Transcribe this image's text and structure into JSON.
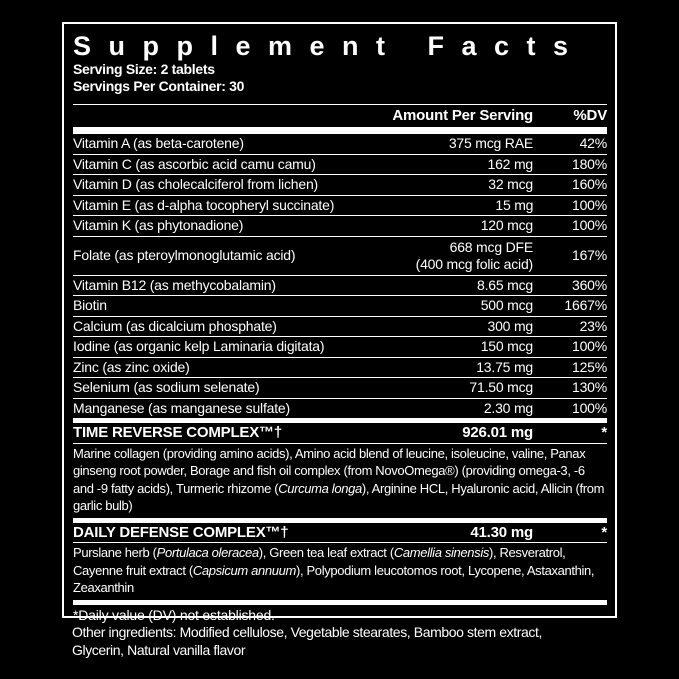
{
  "title": "Supplement Facts",
  "serving_size": "Serving Size: 2 tablets",
  "servings_per_container": "Servings Per Container: 30",
  "columns": {
    "amount": "Amount Per Serving",
    "dv": "%DV"
  },
  "rows": [
    {
      "name": "Vitamin A (as beta-carotene)",
      "amount": "375 mcg RAE",
      "dv": "42%"
    },
    {
      "name": "Vitamin C (as ascorbic acid camu camu)",
      "amount": "162 mg",
      "dv": "180%"
    },
    {
      "name": "Vitamin D (as cholecalciferol from lichen)",
      "amount": "32 mcg",
      "dv": "160%"
    },
    {
      "name": "Vitamin E (as d-alpha tocopheryl succinate)",
      "amount": "15 mg",
      "dv": "100%"
    },
    {
      "name": "Vitamin K (as phytonadione)",
      "amount": "120 mcg",
      "dv": "100%"
    },
    {
      "name": "Folate (as pteroylmonoglutamic acid)",
      "amount": "668 mcg DFE",
      "amount_note": "(400 mcg folic acid)",
      "dv": "167%"
    },
    {
      "name": "Vitamin B12 (as methycobalamin)",
      "amount": "8.65 mcg",
      "dv": "360%"
    },
    {
      "name": "Biotin",
      "amount": "500 mcg",
      "dv": "1667%"
    },
    {
      "name": "Calcium (as dicalcium phosphate)",
      "amount": "300 mg",
      "dv": "23%"
    },
    {
      "name": "Iodine (as organic kelp Laminaria digitata)",
      "amount": "150 mcg",
      "dv": "100%"
    },
    {
      "name": "Zinc (as zinc oxide)",
      "amount": "13.75 mg",
      "dv": "125%"
    },
    {
      "name": "Selenium (as sodium selenate)",
      "amount": "71.50 mcg",
      "dv": "130%"
    },
    {
      "name": "Manganese (as manganese sulfate)",
      "amount": "2.30 mg",
      "dv": "100%"
    }
  ],
  "complexes": [
    {
      "name": "TIME REVERSE COMPLEX™†",
      "amount": "926.01 mg",
      "dv": "*",
      "description": [
        "Marine collagen (providing amino acids), Amino acid blend of leucine, isoleucine, valine, Panax ginseng root powder, Borage and fish oil complex (from NovoOmega®) (providing omega-3, -6 and -9 fatty acids), Turmeric rhizome (",
        "Curcuma longa",
        "), Arginine HCL, Hyaluronic acid, Allicin (from garlic bulb)"
      ]
    },
    {
      "name": "DAILY DEFENSE COMPLEX™†",
      "amount": "41.30 mg",
      "dv": "*",
      "description": [
        "Purslane herb (",
        "Portulaca oleracea",
        "), Green tea leaf extract (",
        "Camellia sinensis",
        "), Resveratrol, Cayenne fruit extract (",
        "Capsicum annuum",
        "), Polypodium leucotomos root, Lycopene, Astaxanthin, Zeaxanthin"
      ]
    }
  ],
  "footnote": "*Daily value (DV) not established.",
  "other_ingredients": "Other ingredients: Modified cellulose, Vegetable stearates, Bamboo stem extract, Glycerin, Natural vanilla flavor"
}
